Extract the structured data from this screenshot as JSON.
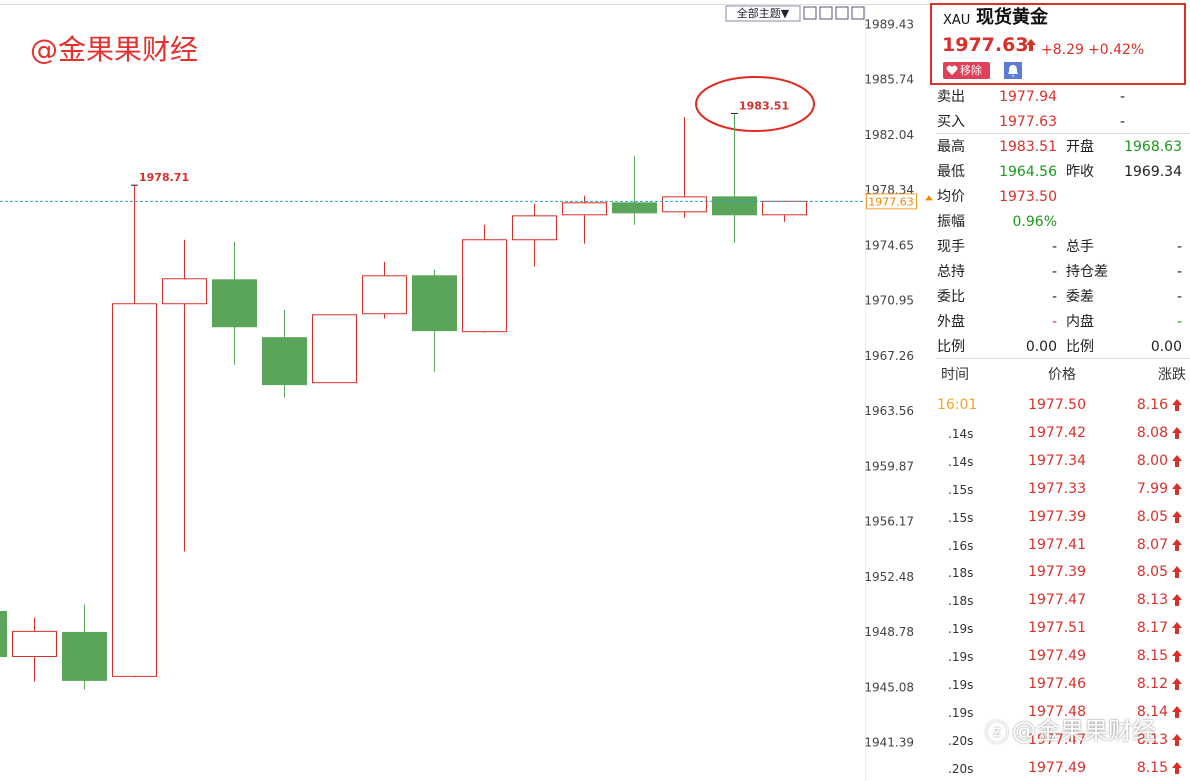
{
  "chart_data": {
    "type": "candlestick",
    "categories": [
      null,
      null,
      null,
      null,
      null,
      null,
      null,
      null,
      null,
      null,
      null,
      null,
      null,
      null,
      null,
      null,
      null
    ],
    "open": [
      1950.19,
      1947.18,
      1948.79,
      1945.85,
      1970.78,
      1972.38,
      1968.51,
      1965.5,
      1970.11,
      1972.65,
      1968.91,
      1975.06,
      1976.73,
      1977.53,
      1976.93,
      1977.93,
      1976.73
    ],
    "high": [
      1950.19,
      1949.79,
      1950.66,
      1978.71,
      1975.06,
      1974.92,
      1970.38,
      1970.04,
      1973.59,
      1973.05,
      1976.06,
      1977.46,
      1978.0,
      1980.67,
      1983.28,
      1983.51,
      1977.67
    ],
    "low": [
      1947.18,
      1945.51,
      1944.98,
      1945.78,
      1954.2,
      1966.7,
      1964.5,
      1965.5,
      1969.78,
      1966.23,
      1968.84,
      1973.25,
      1974.79,
      1976.06,
      1976.53,
      1974.86,
      1976.26
    ],
    "close": [
      1947.18,
      1948.86,
      1945.58,
      1970.78,
      1972.45,
      1969.24,
      1965.37,
      1970.04,
      1972.65,
      1968.98,
      1975.06,
      1976.66,
      1977.53,
      1976.86,
      1977.93,
      1976.73,
      1977.63
    ],
    "ylim": [
      1938.85,
      1991.1
    ],
    "yticks": [
      1989.43,
      1985.74,
      1982.04,
      1978.34,
      1974.65,
      1970.95,
      1967.26,
      1963.56,
      1959.87,
      1956.17,
      1952.48,
      1948.78,
      1945.08,
      1941.39
    ],
    "up_color": "#d9302a",
    "down_color": "#5aa55a",
    "last_price": 1977.63,
    "last_price_color": "#2a9fd6"
  },
  "toolbar": {
    "theme_button": "全部主题▼"
  },
  "watermark": "@金果果财经",
  "footer_watermark": "@金果果财经",
  "quote": {
    "code": "XAU",
    "name": "现货黄金",
    "price": "1977.63",
    "change": "+8.29",
    "change_pct": "+0.42%",
    "remove_button": "移除"
  },
  "stats": [
    [
      "卖出",
      "1977.94",
      "-"
    ],
    [
      "买入",
      "1977.63",
      "-"
    ],
    [
      "最高",
      "1983.51",
      "开盘",
      "1968.63"
    ],
    [
      "最低",
      "1964.56",
      "昨收",
      "1969.34"
    ],
    [
      "均价",
      "1973.50"
    ],
    [
      "振幅",
      "0.96%"
    ],
    [
      "现手",
      "-",
      "总手",
      "-"
    ],
    [
      "总持",
      "-",
      "持仓差",
      "-"
    ],
    [
      "委比",
      "-",
      "委差",
      "-"
    ],
    [
      "外盘",
      "-",
      "内盘",
      "-"
    ],
    [
      "比例",
      "0.00",
      "比例",
      "0.00"
    ]
  ],
  "ticks": {
    "headers": [
      "时间",
      "价格",
      "涨跌"
    ],
    "rows": [
      [
        "16:01",
        "1977.50",
        "8.16"
      ],
      [
        ".14s",
        "1977.42",
        "8.08"
      ],
      [
        ".14s",
        "1977.34",
        "8.00"
      ],
      [
        ".15s",
        "1977.33",
        "7.99"
      ],
      [
        ".15s",
        "1977.39",
        "8.05"
      ],
      [
        ".16s",
        "1977.41",
        "8.07"
      ],
      [
        ".18s",
        "1977.39",
        "8.05"
      ],
      [
        ".18s",
        "1977.47",
        "8.13"
      ],
      [
        ".19s",
        "1977.51",
        "8.17"
      ],
      [
        ".19s",
        "1977.49",
        "8.15"
      ],
      [
        ".19s",
        "1977.46",
        "8.12"
      ],
      [
        ".19s",
        "1977.48",
        "8.14"
      ],
      [
        ".20s",
        "1977.47",
        "8.13"
      ],
      [
        ".20s",
        "1977.49",
        "8.15"
      ]
    ]
  }
}
